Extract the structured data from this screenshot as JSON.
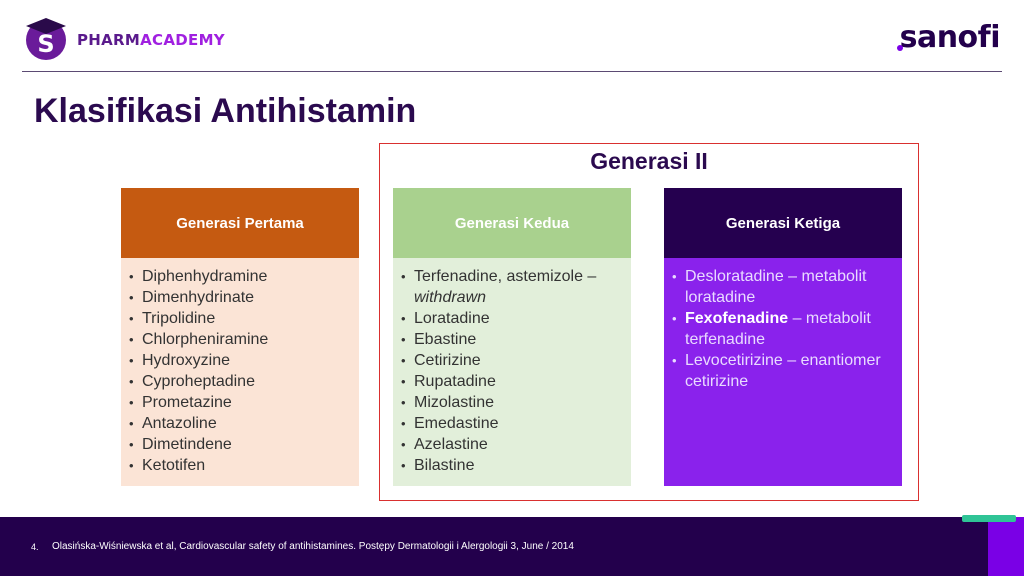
{
  "header": {
    "brand_part1": "PHARM",
    "brand_part2": "ACADEMY",
    "company": "sanofi",
    "colors": {
      "brand_dark": "#5a1a8c",
      "brand_light": "#a020e0",
      "company": "#23004c"
    }
  },
  "slide": {
    "title": "Klasifikasi Antihistamin",
    "group_label": "Generasi II",
    "columns": [
      {
        "heading": "Generasi Pertama",
        "items": [
          "Diphenhydramine",
          "Dimenhydrinate",
          "Tripolidine",
          "Chlorpheniramine",
          "Hydroxyzine",
          "Cyproheptadine",
          "Prometazine",
          "Antazoline",
          "Dimetindene",
          "Ketotifen"
        ]
      },
      {
        "heading": "Generasi Kedua",
        "first_item_main": "Terfenadine, astemizole –",
        "first_item_italic": "withdrawn",
        "items": [
          "Loratadine",
          "Ebastine",
          "Cetirizine",
          "Rupatadine",
          "Mizolastine",
          "Emedastine",
          "Azelastine",
          "Bilastine"
        ]
      },
      {
        "heading": "Generasi Ketiga",
        "item1": "Desloratadine – metabolit loratadine",
        "item2_bold": "Fexofenadine",
        "item2_rest": " – metabolit terfenadine",
        "item3": "Levocetirizine – enantiomer cetirizine"
      }
    ]
  },
  "footer": {
    "page_number": "4.",
    "citation": "Olasińska-Wiśniewska et al, Cardiovascular safety of antihistamines. Postępy Dermatologii i Alergologii 3, June / 2014"
  }
}
